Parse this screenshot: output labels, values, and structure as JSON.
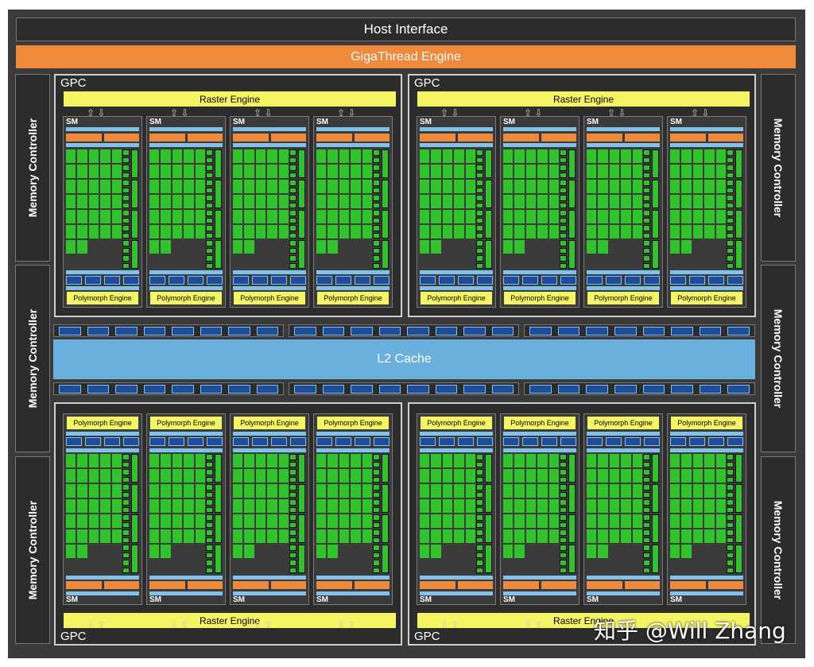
{
  "host_interface": "Host Interface",
  "gigathread_engine": "GigaThread Engine",
  "memory_controller_label": "Memory Controller",
  "l2_cache": "L2 Cache",
  "gpc_label": "GPC",
  "raster_engine": "Raster Engine",
  "sm_label": "SM",
  "polymorph_engine": "Polymorph Engine",
  "watermark": "知乎 @Will Zhang",
  "colors": {
    "background": "#3a3a3a",
    "giga_engine": "#ef8a3b",
    "raster_polymorph": "#f4f560",
    "cores": "#2fc42a",
    "cache": "#6ab0de",
    "blue_units": "#1f4d9c"
  }
}
